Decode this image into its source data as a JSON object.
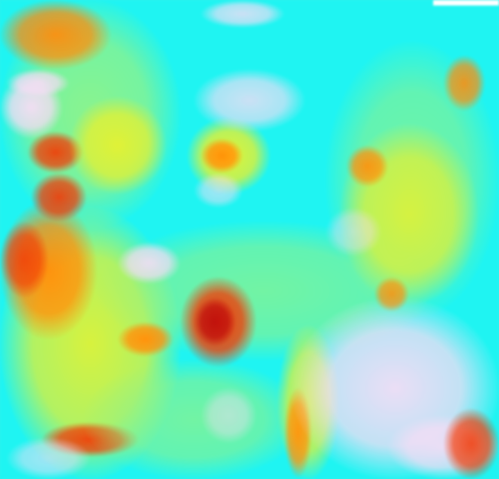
{
  "image": {
    "kind": "false-color satellite raster",
    "palette": {
      "cloud": "#f4ddf4",
      "cyan": "#2ef0ee",
      "green": "#9cf08a",
      "yellow": "#f6f030",
      "orange": "#ff8a10",
      "red": "#e83a0a",
      "dark_red": "#b01010"
    }
  }
}
